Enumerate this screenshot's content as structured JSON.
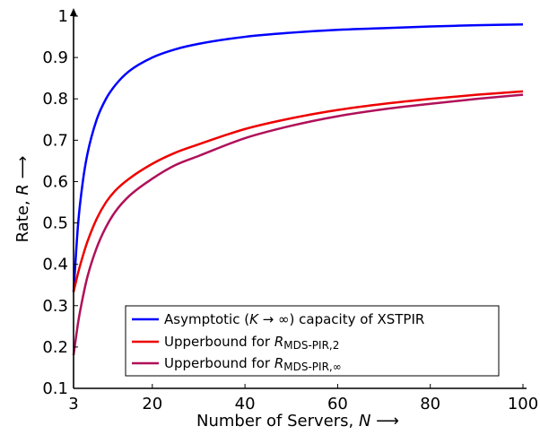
{
  "chart_data": {
    "type": "line",
    "xlabel": "Number of Servers, N ⟶",
    "ylabel": "Rate, R ⟶",
    "xlim": [
      3,
      100
    ],
    "ylim": [
      0.1,
      1.0
    ],
    "xticks": [
      3,
      20,
      40,
      60,
      80,
      100
    ],
    "yticks": [
      0.1,
      0.2,
      0.3,
      0.4,
      0.5,
      0.6,
      0.7,
      0.8,
      0.9,
      1.0
    ],
    "xtick_labels": [
      "3",
      "20",
      "40",
      "60",
      "80",
      "100"
    ],
    "ytick_labels": [
      "0.1",
      "0.2",
      "0.3",
      "0.4",
      "0.5",
      "0.6",
      "0.7",
      "0.8",
      "0.9",
      "1"
    ],
    "grid": false,
    "legend_position": "bottom-right",
    "x": [
      3,
      4,
      5,
      6,
      8,
      10,
      12,
      15,
      20,
      25,
      30,
      40,
      50,
      60,
      70,
      80,
      90,
      100
    ],
    "series": [
      {
        "name": "Asymptotic (K → ∞) capacity of XSTPIR",
        "color": "#0000ff",
        "values": [
          0.333,
          0.5,
          0.6,
          0.667,
          0.75,
          0.8,
          0.833,
          0.867,
          0.9,
          0.92,
          0.933,
          0.95,
          0.96,
          0.967,
          0.971,
          0.975,
          0.978,
          0.98
        ]
      },
      {
        "name": "Upperbound for R_MDS-PIR,2",
        "color": "#ee0000",
        "values": [
          0.333,
          0.38,
          0.42,
          0.455,
          0.51,
          0.55,
          0.578,
          0.607,
          0.643,
          0.67,
          0.69,
          0.727,
          0.753,
          0.773,
          0.788,
          0.8,
          0.81,
          0.818
        ]
      },
      {
        "name": "Upperbound for R_MDS-PIR,∞",
        "color": "#b0105a",
        "values": [
          0.18,
          0.26,
          0.32,
          0.37,
          0.44,
          0.49,
          0.527,
          0.565,
          0.607,
          0.64,
          0.662,
          0.705,
          0.735,
          0.758,
          0.775,
          0.788,
          0.8,
          0.81
        ]
      }
    ],
    "legend": {
      "entries": [
        {
          "prefix": "Asymptotic (",
          "italic": "K",
          "suffix": " → ∞) capacity of XSTPIR"
        },
        {
          "prefix": "Upperbound for ",
          "italic": "R",
          "subscript": "MDS-PIR,2"
        },
        {
          "prefix": "Upperbound for ",
          "italic": "R",
          "subscript": "MDS-PIR,∞"
        }
      ]
    },
    "axis_titles": {
      "x": {
        "prefix": "Number of Servers, ",
        "italic": "N",
        "suffix": " ⟶"
      },
      "y": {
        "prefix": "Rate, ",
        "italic": "R",
        "suffix": " ⟶"
      }
    }
  }
}
